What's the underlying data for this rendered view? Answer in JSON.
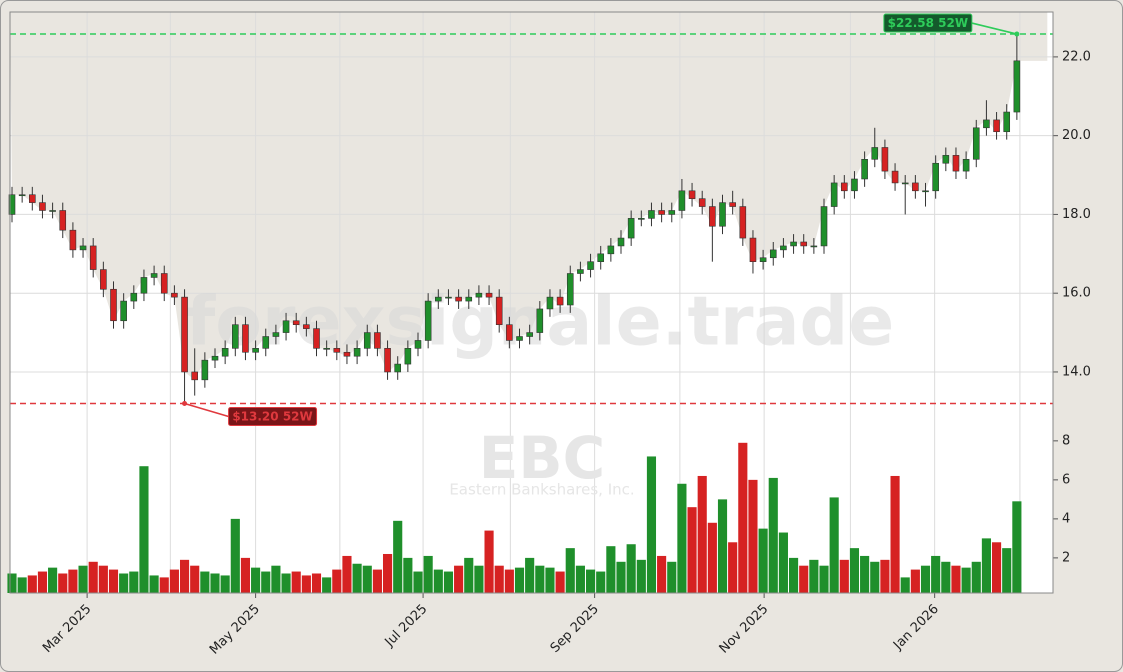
{
  "chart_data": [
    {
      "type": "candlestick",
      "watermark": "forexsignale.trade",
      "ticker": "EBC",
      "company": "Eastern Bankshares, Inc.",
      "up_color": "#1f8f2b",
      "down_color": "#d62222",
      "open": [
        18.0,
        18.5,
        18.5,
        18.3,
        18.1,
        18.1,
        17.6,
        17.1,
        17.2,
        16.6,
        16.1,
        15.3,
        15.8,
        16.0,
        16.4,
        16.5,
        16.0,
        15.9,
        14.0,
        13.8,
        14.3,
        14.4,
        14.6,
        15.2,
        14.5,
        14.6,
        14.9,
        15.0,
        15.3,
        15.2,
        15.1,
        14.6,
        14.6,
        14.5,
        14.4,
        14.6,
        15.0,
        14.6,
        14.0,
        14.2,
        14.6,
        14.8,
        15.8,
        15.9,
        15.9,
        15.8,
        15.9,
        16.0,
        15.9,
        15.2,
        14.8,
        14.9,
        15.0,
        15.6,
        15.9,
        15.7,
        16.5,
        16.6,
        16.8,
        17.0,
        17.2,
        17.4,
        17.9,
        17.9,
        18.1,
        18.0,
        18.1,
        18.6,
        18.4,
        18.2,
        17.7,
        18.3,
        18.2,
        17.4,
        16.8,
        16.9,
        17.1,
        17.2,
        17.3,
        17.2,
        17.2,
        18.2,
        18.8,
        18.6,
        18.9,
        19.4,
        19.7,
        19.1,
        18.8,
        18.8,
        18.6,
        18.6,
        19.3,
        19.5,
        19.1,
        19.4,
        20.2,
        20.4,
        20.1,
        20.6
      ],
      "high": [
        18.7,
        18.7,
        18.7,
        18.5,
        18.3,
        18.3,
        17.8,
        17.4,
        17.4,
        16.8,
        16.3,
        16.0,
        16.2,
        16.6,
        16.7,
        16.7,
        16.2,
        16.1,
        14.6,
        14.5,
        14.6,
        14.8,
        15.4,
        15.4,
        14.8,
        15.1,
        15.2,
        15.5,
        15.5,
        15.4,
        15.3,
        14.8,
        14.8,
        14.7,
        14.8,
        15.2,
        15.2,
        14.8,
        14.4,
        14.8,
        15.0,
        16.0,
        16.1,
        16.1,
        16.1,
        16.1,
        16.2,
        16.2,
        16.1,
        15.4,
        15.1,
        15.2,
        15.8,
        16.1,
        16.1,
        16.7,
        16.8,
        17.0,
        17.2,
        17.4,
        17.6,
        18.1,
        18.1,
        18.3,
        18.3,
        18.3,
        18.9,
        18.8,
        18.6,
        18.4,
        18.5,
        18.6,
        18.4,
        17.6,
        17.1,
        17.3,
        17.4,
        17.5,
        17.5,
        17.4,
        18.4,
        19.0,
        19.0,
        19.1,
        19.6,
        20.2,
        19.9,
        19.3,
        19.0,
        19.0,
        18.8,
        19.5,
        19.7,
        19.7,
        19.6,
        20.4,
        20.9,
        20.6,
        20.8,
        22.58
      ],
      "low": [
        17.8,
        18.3,
        18.1,
        17.9,
        17.9,
        17.4,
        16.9,
        16.9,
        16.4,
        15.9,
        15.1,
        15.1,
        15.6,
        15.8,
        16.2,
        15.8,
        15.7,
        13.2,
        13.4,
        13.6,
        14.1,
        14.2,
        14.4,
        14.3,
        14.3,
        14.4,
        14.7,
        14.8,
        15.0,
        14.9,
        14.4,
        14.4,
        14.3,
        14.2,
        14.2,
        14.4,
        14.4,
        13.8,
        13.8,
        14.0,
        14.4,
        14.6,
        15.6,
        15.7,
        15.6,
        15.6,
        15.7,
        15.7,
        15.0,
        14.6,
        14.6,
        14.7,
        14.8,
        15.4,
        15.5,
        15.5,
        16.3,
        16.4,
        16.6,
        16.8,
        17.0,
        17.2,
        17.7,
        17.7,
        17.8,
        17.8,
        17.9,
        18.2,
        18.0,
        16.8,
        17.5,
        18.0,
        17.2,
        16.5,
        16.6,
        16.7,
        16.9,
        17.0,
        17.0,
        17.0,
        17.0,
        18.0,
        18.4,
        18.4,
        18.7,
        19.2,
        18.9,
        18.6,
        18.0,
        18.4,
        18.2,
        18.4,
        19.1,
        18.9,
        18.9,
        19.2,
        20.0,
        19.9,
        19.9,
        20.4
      ],
      "close": [
        18.5,
        18.5,
        18.3,
        18.1,
        18.1,
        17.6,
        17.1,
        17.2,
        16.6,
        16.1,
        15.3,
        15.8,
        16.0,
        16.4,
        16.5,
        16.0,
        15.9,
        14.0,
        13.8,
        14.3,
        14.4,
        14.6,
        15.2,
        14.5,
        14.6,
        14.9,
        15.0,
        15.3,
        15.2,
        15.1,
        14.6,
        14.6,
        14.5,
        14.4,
        14.6,
        15.0,
        14.6,
        14.0,
        14.2,
        14.6,
        14.8,
        15.8,
        15.9,
        15.9,
        15.8,
        15.9,
        16.0,
        15.9,
        15.2,
        14.8,
        14.9,
        15.0,
        15.6,
        15.9,
        15.7,
        16.5,
        16.6,
        16.8,
        17.0,
        17.2,
        17.4,
        17.9,
        17.9,
        18.1,
        18.0,
        18.1,
        18.6,
        18.4,
        18.2,
        17.7,
        18.3,
        18.2,
        17.4,
        16.8,
        16.9,
        17.1,
        17.2,
        17.3,
        17.2,
        17.2,
        18.2,
        18.8,
        18.6,
        18.9,
        19.4,
        19.7,
        19.1,
        18.8,
        18.8,
        18.6,
        18.6,
        19.3,
        19.5,
        19.1,
        19.4,
        20.2,
        20.4,
        20.1,
        20.6,
        21.9
      ],
      "xlim": [
        -0.197,
        102.56
      ],
      "xticks": [
        {
          "value": 7.4,
          "label": "Mar 2025"
        },
        {
          "value": 24.0,
          "label": "May 2025"
        },
        {
          "value": 40.5,
          "label": "Jul 2025"
        },
        {
          "value": 57.4,
          "label": "Sep 2025"
        },
        {
          "value": 74.1,
          "label": "Nov 2025"
        },
        {
          "value": 90.9,
          "label": "Jan 2026"
        }
      ],
      "x_minor_ticks": [
        15.6,
        32.3,
        49.1,
        65.8,
        82.6,
        99.3
      ],
      "ylim": [
        12.45,
        23.14
      ],
      "yticks": [
        {
          "value": 14,
          "label": "14.0"
        },
        {
          "value": 16,
          "label": "16.0"
        },
        {
          "value": 18,
          "label": "18.0"
        },
        {
          "value": 20,
          "label": "20.0"
        },
        {
          "value": 22,
          "label": "22.0"
        }
      ],
      "grid": true,
      "annotations": [
        {
          "text": "$22.58 52W",
          "value": 22.58,
          "at": 99,
          "color": "#2ecc5a"
        },
        {
          "text": "$13.20 52W",
          "value": 13.2,
          "at": 17,
          "color": "#e0393e"
        }
      ]
    },
    {
      "type": "bar",
      "values": [
        1.2,
        1.0,
        1.1,
        1.3,
        1.5,
        1.2,
        1.4,
        1.6,
        1.8,
        1.6,
        1.4,
        1.2,
        1.3,
        6.7,
        1.1,
        1.0,
        1.4,
        1.9,
        1.6,
        1.3,
        1.2,
        1.1,
        4.0,
        2.0,
        1.5,
        1.3,
        1.6,
        1.2,
        1.3,
        1.1,
        1.2,
        1.0,
        1.4,
        2.1,
        1.7,
        1.6,
        1.4,
        2.2,
        3.9,
        2.0,
        1.3,
        2.1,
        1.4,
        1.3,
        1.6,
        2.0,
        1.6,
        3.4,
        1.6,
        1.4,
        1.5,
        2.0,
        1.6,
        1.5,
        1.3,
        2.5,
        1.6,
        1.4,
        1.3,
        2.6,
        1.8,
        2.7,
        1.9,
        7.2,
        2.1,
        1.8,
        5.8,
        4.6,
        6.2,
        3.8,
        5.0,
        2.8,
        7.9,
        6.0,
        3.5,
        6.1,
        3.3,
        2.0,
        1.6,
        1.9,
        1.6,
        5.1,
        1.9,
        2.5,
        2.1,
        1.8,
        1.9,
        6.2,
        1.0,
        1.4,
        1.6,
        2.1,
        1.8,
        1.6,
        1.5,
        1.8,
        3.0,
        2.8,
        2.5,
        4.9
      ],
      "ylim": [
        0.2,
        8.3
      ],
      "yticks": [
        2,
        4,
        6,
        8
      ]
    }
  ]
}
